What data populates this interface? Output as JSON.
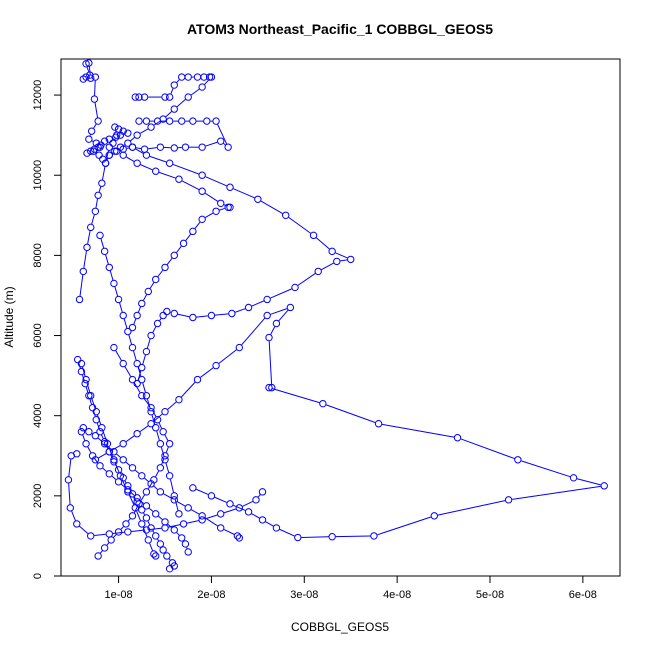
{
  "chart_data": {
    "type": "line",
    "title": "ATOM3 Northeast_Pacific_1 COBBGL_GEOS5",
    "xlabel": "COBBGL_GEOS5",
    "ylabel": "Altitude (m)",
    "xlim": [
      3.8e-09,
      6.4e-08
    ],
    "ylim": [
      0,
      12900
    ],
    "x_ticks": [
      1e-08,
      2e-08,
      3e-08,
      4e-08,
      5e-08,
      6e-08
    ],
    "x_tick_labels": [
      "1e-08",
      "2e-08",
      "3e-08",
      "4e-08",
      "5e-08",
      "6e-08"
    ],
    "y_ticks": [
      0,
      2000,
      4000,
      6000,
      8000,
      10000,
      12000
    ],
    "y_tick_labels": [
      "0",
      "2000",
      "4000",
      "6000",
      "8000",
      "10000",
      "12000"
    ],
    "markers": "open-circle",
    "color": "#0000ff",
    "grid": false,
    "series": [
      {
        "x": [
          6.2e-09,
          6.5e-09,
          7e-09,
          6.8e-09,
          6.5e-09,
          6.9e-09,
          7.5e-09,
          7.4e-09,
          7.8e-09,
          7.1e-09,
          6.8e-09,
          7.6e-09,
          8e-09,
          7.3e-09,
          7.9e-09,
          8.3e-09,
          8.6e-09,
          9e-09,
          9.4e-09,
          9.8e-09,
          9.6e-09,
          1e-08,
          1.05e-08,
          1.1e-08,
          1.02e-08,
          9.7e-09,
          9e-09,
          8.5e-09,
          8.1e-09,
          7.8e-09,
          7.4e-09,
          7e-09,
          6.6e-09
        ],
        "y": [
          12400,
          12450,
          12420,
          12800,
          12780,
          12500,
          12450,
          11900,
          11350,
          11100,
          10900,
          10800,
          10700,
          10600,
          10500,
          10400,
          10300,
          10700,
          10800,
          11000,
          11200,
          11150,
          11100,
          11050,
          11000,
          10950,
          10900,
          10850,
          10750,
          10700,
          10650,
          10600,
          10550
        ]
      },
      {
        "x": [
          1.22e-08,
          1.3e-08,
          1.42e-08,
          1.55e-08,
          1.68e-08,
          1.8e-08,
          1.95e-08,
          2.05e-08,
          2.18e-08,
          2.1e-08,
          1.9e-08,
          1.72e-08,
          1.6e-08,
          1.45e-08,
          1.28e-08,
          1.15e-08,
          1.05e-08,
          9.8e-09,
          9e-09,
          8.6e-09,
          8.2e-09,
          7.8e-09,
          7.5e-09,
          7e-09,
          6.6e-09,
          6.2e-09,
          5.8e-09
        ],
        "y": [
          11350,
          11350,
          11350,
          11350,
          11350,
          11350,
          11350,
          11350,
          10700,
          10850,
          10700,
          10700,
          10680,
          10700,
          10650,
          10700,
          10650,
          10600,
          10500,
          10300,
          9800,
          9500,
          9100,
          8700,
          8200,
          7600,
          6900
        ]
      },
      {
        "x": [
          1.18e-08,
          1.22e-08,
          1.28e-08,
          1.5e-08,
          1.55e-08,
          1.6e-08,
          1.68e-08,
          1.75e-08,
          1.85e-08,
          1.92e-08,
          1.98e-08,
          2e-08,
          1.9e-08,
          1.75e-08,
          1.6e-08,
          1.48e-08,
          1.35e-08,
          1.2e-08,
          1.1e-08,
          1.02e-08,
          9.6e-09,
          9e-09
        ],
        "y": [
          11950,
          11950,
          11950,
          11950,
          11950,
          12250,
          12450,
          12450,
          12450,
          12450,
          12450,
          12450,
          12200,
          11950,
          11650,
          11400,
          11200,
          11000,
          10800,
          10700,
          10600,
          10500
        ]
      },
      {
        "x": [
          1.15e-08,
          1.3e-08,
          1.55e-08,
          1.9e-08,
          2.2e-08,
          2.5e-08,
          2.8e-08,
          3.1e-08,
          3.3e-08,
          3.5e-08,
          3.35e-08,
          3.15e-08,
          2.9e-08,
          2.6e-08,
          2.4e-08,
          2.22e-08,
          2e-08,
          1.8e-08,
          1.6e-08,
          1.52e-08,
          1.48e-08,
          1.42e-08,
          1.35e-08,
          1.3e-08,
          1.25e-08,
          1.2e-08
        ],
        "y": [
          10700,
          10500,
          10300,
          10000,
          9700,
          9400,
          9000,
          8500,
          8100,
          7900,
          7850,
          7600,
          7200,
          6900,
          6700,
          6550,
          6500,
          6450,
          6550,
          6600,
          6500,
          6300,
          6000,
          5600,
          5200,
          4800
        ]
      },
      {
        "x": [
          1.05e-08,
          1.2e-08,
          1.4e-08,
          1.65e-08,
          1.9e-08,
          2.1e-08,
          2.2e-08,
          2.18e-08,
          2.05e-08,
          1.9e-08,
          1.8e-08,
          1.7e-08,
          1.6e-08,
          1.5e-08,
          1.4e-08,
          1.32e-08,
          1.25e-08,
          1.2e-08,
          1.15e-08
        ],
        "y": [
          10500,
          10300,
          10100,
          9900,
          9600,
          9300,
          9200,
          9200,
          9100,
          8900,
          8600,
          8300,
          8000,
          7700,
          7400,
          7100,
          6800,
          6500,
          6200
        ]
      },
      {
        "x": [
          2.65e-08,
          2.62e-08,
          2.7e-08,
          2.85e-08,
          2.6e-08,
          2.3e-08,
          2.05e-08,
          1.85e-08,
          1.65e-08,
          1.5e-08,
          1.35e-08,
          1.2e-08,
          1.05e-08,
          9e-09,
          7.5e-09
        ],
        "y": [
          4700,
          5950,
          6300,
          6700,
          6500,
          5700,
          5250,
          4900,
          4400,
          4100,
          3800,
          3550,
          3300,
          3100,
          2900
        ]
      },
      {
        "x": [
          2.62e-08,
          3.2e-08,
          3.8e-08,
          4.65e-08,
          5.3e-08,
          5.9e-08,
          6.23e-08,
          5.2e-08,
          4.4e-08,
          3.75e-08,
          3.3e-08,
          2.93e-08,
          2.7e-08,
          2.55e-08,
          2.4e-08,
          2.2e-08,
          2e-08,
          1.8e-08
        ],
        "y": [
          4700,
          4300,
          3800,
          3450,
          2900,
          2450,
          2250,
          1900,
          1500,
          1000,
          980,
          960,
          1200,
          1400,
          1600,
          1800,
          2000,
          2200
        ]
      },
      {
        "x": [
          2.55e-08,
          2.48e-08,
          2.3e-08,
          2.1e-08,
          1.9e-08,
          1.7e-08,
          1.5e-08,
          1.3e-08,
          1.1e-08,
          9e-09,
          7e-09,
          5.5e-09,
          4.8e-09,
          4.6e-09,
          4.9e-09,
          5.5e-09
        ],
        "y": [
          2100,
          1900,
          1700,
          1550,
          1400,
          1300,
          1200,
          1150,
          1100,
          1050,
          1000,
          1300,
          1700,
          2400,
          3000,
          3050
        ]
      },
      {
        "x": [
          2.3e-08,
          2.28e-08,
          2.1e-08,
          1.9e-08,
          1.75e-08,
          1.6e-08,
          1.45e-08,
          1.35e-08,
          1.25e-08,
          1.15e-08,
          1.05e-08,
          9.5e-09,
          8.5e-09,
          7.5e-09,
          6.8e-09,
          6.2e-09
        ],
        "y": [
          950,
          1000,
          1200,
          1500,
          1700,
          1900,
          2100,
          2300,
          2500,
          2700,
          2900,
          3100,
          3300,
          3500,
          3600,
          3700
        ]
      },
      {
        "x": [
          1.55e-08,
          1.6e-08,
          1.58e-08,
          1.52e-08,
          1.48e-08,
          1.45e-08,
          1.4e-08,
          1.35e-08,
          1.3e-08,
          1.25e-08,
          1.2e-08,
          1.15e-08,
          1.1e-08,
          1.05e-08,
          1e-08,
          9.5e-09,
          9e-09,
          8.5e-09,
          8e-09,
          7.6e-09,
          7.2e-09,
          6.8e-09,
          6.4e-09,
          6e-09,
          5.6e-09
        ],
        "y": [
          180,
          250,
          330,
          500,
          650,
          800,
          1000,
          1200,
          1450,
          1650,
          1850,
          2050,
          2250,
          2450,
          2650,
          2850,
          3100,
          3350,
          3600,
          3900,
          4200,
          4500,
          4800,
          5100,
          5400
        ]
      },
      {
        "x": [
          1.75e-08,
          1.72e-08,
          1.68e-08,
          1.6e-08,
          1.5e-08,
          1.4e-08,
          1.3e-08,
          1.2e-08,
          1.1e-08,
          1e-08,
          9e-09,
          8e-09,
          7.2e-09,
          6.5e-09,
          6e-09
        ],
        "y": [
          600,
          800,
          950,
          1150,
          1350,
          1550,
          1750,
          1950,
          2150,
          2350,
          2550,
          2750,
          3000,
          3300,
          3600
        ]
      },
      {
        "x": [
          1.4e-08,
          1.38e-08,
          1.32e-08,
          1.25e-08,
          1.18e-08,
          1.1e-08,
          1.02e-08,
          9.5e-09,
          8.8e-09,
          8.2e-09,
          7.6e-09,
          7e-09,
          6.5e-09,
          6e-09
        ],
        "y": [
          500,
          550,
          900,
          1300,
          1700,
          2100,
          2500,
          2900,
          3300,
          3700,
          4100,
          4500,
          4900,
          5300
        ]
      },
      {
        "x": [
          1.65e-08,
          1.6e-08,
          1.55e-08,
          1.5e-08,
          1.45e-08,
          1.4e-08,
          1.35e-08,
          1.3e-08,
          1.25e-08,
          1.2e-08,
          1.15e-08,
          1.1e-08,
          1.05e-08,
          1e-08,
          9.5e-09,
          9e-09,
          8.5e-09,
          8e-09
        ],
        "y": [
          1550,
          2000,
          2500,
          2900,
          3300,
          3700,
          4100,
          4500,
          4900,
          5300,
          5700,
          6100,
          6500,
          6900,
          7300,
          7700,
          8100,
          8500
        ]
      },
      {
        "x": [
          9.5e-09,
          1.05e-08,
          1.15e-08,
          1.25e-08,
          1.35e-08,
          1.42e-08,
          1.48e-08,
          1.55e-08,
          1.5e-08,
          1.45e-08,
          1.38e-08,
          1.3e-08,
          1.22e-08,
          1.15e-08,
          1.08e-08,
          1e-08,
          9.2e-09,
          8.5e-09,
          7.8e-09
        ],
        "y": [
          5700,
          5300,
          4900,
          4500,
          4200,
          3900,
          3600,
          3300,
          3000,
          2700,
          2400,
          2100,
          1800,
          1500,
          1300,
          1100,
          900,
          700,
          500
        ]
      }
    ]
  }
}
